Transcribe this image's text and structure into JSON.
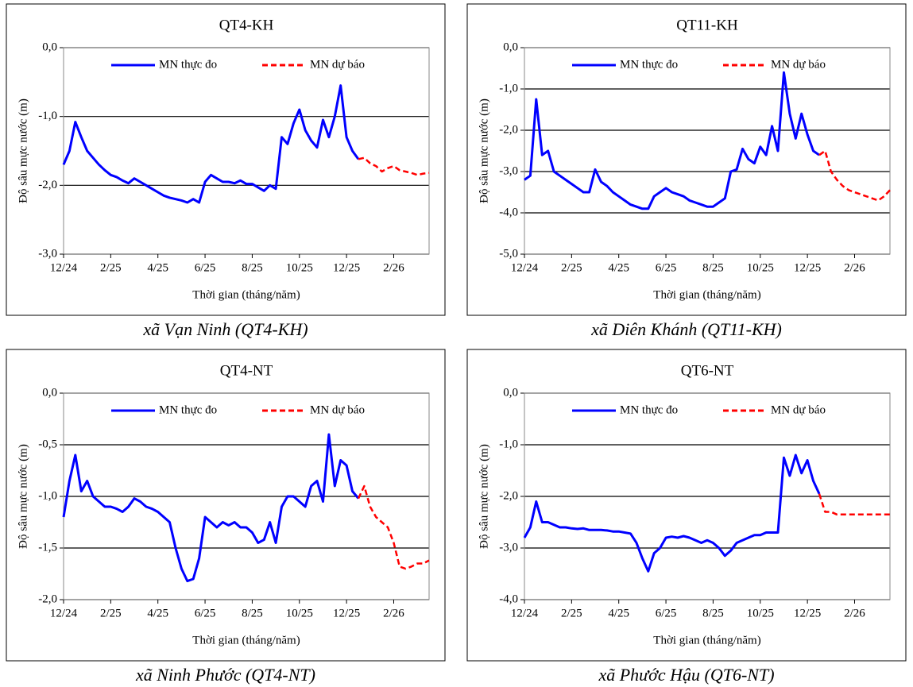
{
  "chart_data": [
    {
      "type": "line",
      "title": "QT4-KH",
      "caption": "xã Vạn Ninh (QT4-KH)",
      "ylabel": "Độ sâu mực nước (m)",
      "xlabel": "Thời gian (tháng/năm)",
      "categories": [
        "12/24",
        null,
        null,
        null,
        null,
        null,
        null,
        null,
        "2/25",
        null,
        null,
        null,
        null,
        null,
        null,
        null,
        "4/25",
        null,
        null,
        null,
        null,
        null,
        null,
        null,
        "6/25",
        null,
        null,
        null,
        null,
        null,
        null,
        null,
        "8/25",
        null,
        null,
        null,
        null,
        null,
        null,
        null,
        "10/25",
        null,
        null,
        null,
        null,
        null,
        null,
        null,
        "12/25",
        null,
        null,
        null,
        null,
        null,
        null,
        null,
        "2/26",
        null,
        null,
        null,
        null,
        null,
        null
      ],
      "ylim": [
        -3,
        0
      ],
      "yticks": [
        {
          "value": -3,
          "label": "-3,0"
        },
        {
          "value": -2,
          "label": "-2,0"
        },
        {
          "value": -1,
          "label": "-1,0"
        },
        {
          "value": 0,
          "label": "0,0"
        }
      ],
      "grid": true,
      "series": [
        {
          "name": "MN thực đo",
          "color": "#0000ff",
          "dash": false,
          "values": [
            -1.7,
            -1.5,
            -1.08,
            -1.3,
            -1.5,
            -1.6,
            -1.7,
            -1.78,
            -1.85,
            -1.88,
            -1.93,
            -1.97,
            -1.9,
            -1.95,
            -2.0,
            -2.05,
            -2.1,
            -2.15,
            -2.18,
            -2.2,
            -2.22,
            -2.25,
            -2.2,
            -2.25,
            -1.95,
            -1.85,
            -1.9,
            -1.95,
            -1.95,
            -1.97,
            -1.93,
            -1.98,
            -1.98,
            -2.03,
            -2.08,
            -2.0,
            -2.05,
            -1.3,
            -1.4,
            -1.1,
            -0.9,
            -1.2,
            -1.35,
            -1.45,
            -1.05,
            -1.3,
            -1.0,
            -0.55,
            -1.3,
            -1.5,
            -1.62,
            null,
            null,
            null,
            null,
            null,
            null,
            null,
            null,
            null,
            null,
            null,
            null
          ]
        },
        {
          "name": "MN dự báo",
          "color": "#ff0000",
          "dash": true,
          "values": [
            null,
            null,
            null,
            null,
            null,
            null,
            null,
            null,
            null,
            null,
            null,
            null,
            null,
            null,
            null,
            null,
            null,
            null,
            null,
            null,
            null,
            null,
            null,
            null,
            null,
            null,
            null,
            null,
            null,
            null,
            null,
            null,
            null,
            null,
            null,
            null,
            null,
            null,
            null,
            null,
            null,
            null,
            null,
            null,
            null,
            null,
            null,
            null,
            null,
            null,
            -1.62,
            -1.6,
            -1.68,
            -1.72,
            -1.8,
            -1.75,
            -1.72,
            -1.78,
            -1.8,
            -1.82,
            -1.85,
            -1.83,
            -1.82
          ]
        }
      ]
    },
    {
      "type": "line",
      "title": "QT11-KH",
      "caption": "xã Diên Khánh (QT11-KH)",
      "ylabel": "Độ sâu mực nước (m)",
      "xlabel": "Thời gian (tháng/năm)",
      "categories": [
        "12/24",
        null,
        null,
        null,
        null,
        null,
        null,
        null,
        "2/25",
        null,
        null,
        null,
        null,
        null,
        null,
        null,
        "4/25",
        null,
        null,
        null,
        null,
        null,
        null,
        null,
        "6/25",
        null,
        null,
        null,
        null,
        null,
        null,
        null,
        "8/25",
        null,
        null,
        null,
        null,
        null,
        null,
        null,
        "10/25",
        null,
        null,
        null,
        null,
        null,
        null,
        null,
        "12/25",
        null,
        null,
        null,
        null,
        null,
        null,
        null,
        "2/26",
        null,
        null,
        null,
        null,
        null,
        null
      ],
      "ylim": [
        -5,
        0
      ],
      "yticks": [
        {
          "value": -5,
          "label": "-5,0"
        },
        {
          "value": -4,
          "label": "-4,0"
        },
        {
          "value": -3,
          "label": "-3,0"
        },
        {
          "value": -2,
          "label": "-2,0"
        },
        {
          "value": -1,
          "label": "-1,0"
        },
        {
          "value": 0,
          "label": "0,0"
        }
      ],
      "grid": true,
      "series": [
        {
          "name": "MN thực đo",
          "color": "#0000ff",
          "dash": false,
          "values": [
            -3.2,
            -3.1,
            -1.25,
            -2.6,
            -2.5,
            -3.0,
            -3.1,
            -3.2,
            -3.3,
            -3.4,
            -3.5,
            -3.5,
            -2.95,
            -3.25,
            -3.35,
            -3.5,
            -3.6,
            -3.7,
            -3.8,
            -3.85,
            -3.9,
            -3.9,
            -3.6,
            -3.5,
            -3.4,
            -3.5,
            -3.55,
            -3.6,
            -3.7,
            -3.75,
            -3.8,
            -3.85,
            -3.85,
            -3.75,
            -3.65,
            -3.0,
            -2.95,
            -2.45,
            -2.7,
            -2.8,
            -2.4,
            -2.6,
            -1.9,
            -2.5,
            -0.6,
            -1.6,
            -2.2,
            -1.6,
            -2.1,
            -2.5,
            -2.6,
            null,
            null,
            null,
            null,
            null,
            null,
            null,
            null,
            null,
            null,
            null,
            null
          ]
        },
        {
          "name": "MN dự báo",
          "color": "#ff0000",
          "dash": true,
          "values": [
            null,
            null,
            null,
            null,
            null,
            null,
            null,
            null,
            null,
            null,
            null,
            null,
            null,
            null,
            null,
            null,
            null,
            null,
            null,
            null,
            null,
            null,
            null,
            null,
            null,
            null,
            null,
            null,
            null,
            null,
            null,
            null,
            null,
            null,
            null,
            null,
            null,
            null,
            null,
            null,
            null,
            null,
            null,
            null,
            null,
            null,
            null,
            null,
            null,
            null,
            -2.6,
            -2.5,
            -3.0,
            -3.2,
            -3.35,
            -3.45,
            -3.5,
            -3.55,
            -3.6,
            -3.65,
            -3.7,
            -3.6,
            -3.45
          ]
        }
      ]
    },
    {
      "type": "line",
      "title": "QT4-NT",
      "caption": "xã Ninh Phước (QT4-NT)",
      "ylabel": "Độ sâu mực nước (m)",
      "xlabel": "Thời gian (tháng/năm)",
      "categories": [
        "12/24",
        null,
        null,
        null,
        null,
        null,
        null,
        null,
        "2/25",
        null,
        null,
        null,
        null,
        null,
        null,
        null,
        "4/25",
        null,
        null,
        null,
        null,
        null,
        null,
        null,
        "6/25",
        null,
        null,
        null,
        null,
        null,
        null,
        null,
        "8/25",
        null,
        null,
        null,
        null,
        null,
        null,
        null,
        "10/25",
        null,
        null,
        null,
        null,
        null,
        null,
        null,
        "12/25",
        null,
        null,
        null,
        null,
        null,
        null,
        null,
        "2/26",
        null,
        null,
        null,
        null,
        null,
        null
      ],
      "ylim": [
        -2,
        0
      ],
      "yticks": [
        {
          "value": -2,
          "label": "-2,0"
        },
        {
          "value": -1.5,
          "label": "-1,5"
        },
        {
          "value": -1,
          "label": "-1,0"
        },
        {
          "value": -0.5,
          "label": "-0,5"
        },
        {
          "value": 0,
          "label": "0,0"
        }
      ],
      "grid": true,
      "series": [
        {
          "name": "MN thực đo",
          "color": "#0000ff",
          "dash": false,
          "values": [
            -1.2,
            -0.85,
            -0.6,
            -0.95,
            -0.85,
            -1.0,
            -1.05,
            -1.1,
            -1.1,
            -1.12,
            -1.15,
            -1.1,
            -1.02,
            -1.05,
            -1.1,
            -1.12,
            -1.15,
            -1.2,
            -1.25,
            -1.5,
            -1.7,
            -1.82,
            -1.8,
            -1.6,
            -1.2,
            -1.25,
            -1.3,
            -1.25,
            -1.28,
            -1.25,
            -1.3,
            -1.3,
            -1.35,
            -1.45,
            -1.42,
            -1.25,
            -1.45,
            -1.1,
            -1.0,
            -1.0,
            -1.05,
            -1.1,
            -0.9,
            -0.85,
            -1.05,
            -0.4,
            -0.9,
            -0.65,
            -0.7,
            -0.95,
            -1.02,
            null,
            null,
            null,
            null,
            null,
            null,
            null,
            null,
            null,
            null,
            null,
            null
          ]
        },
        {
          "name": "MN dự báo",
          "color": "#ff0000",
          "dash": true,
          "values": [
            null,
            null,
            null,
            null,
            null,
            null,
            null,
            null,
            null,
            null,
            null,
            null,
            null,
            null,
            null,
            null,
            null,
            null,
            null,
            null,
            null,
            null,
            null,
            null,
            null,
            null,
            null,
            null,
            null,
            null,
            null,
            null,
            null,
            null,
            null,
            null,
            null,
            null,
            null,
            null,
            null,
            null,
            null,
            null,
            null,
            null,
            null,
            null,
            null,
            null,
            -1.02,
            -0.9,
            -1.1,
            -1.2,
            -1.25,
            -1.3,
            -1.45,
            -1.68,
            -1.7,
            -1.68,
            -1.65,
            -1.65,
            -1.62
          ]
        }
      ]
    },
    {
      "type": "line",
      "title": "QT6-NT",
      "caption": "xã Phước Hậu (QT6-NT)",
      "ylabel": "Độ sâu mực nước (m)",
      "xlabel": "Thời gian (tháng/năm)",
      "categories": [
        "12/24",
        null,
        null,
        null,
        null,
        null,
        null,
        null,
        "2/25",
        null,
        null,
        null,
        null,
        null,
        null,
        null,
        "4/25",
        null,
        null,
        null,
        null,
        null,
        null,
        null,
        "6/25",
        null,
        null,
        null,
        null,
        null,
        null,
        null,
        "8/25",
        null,
        null,
        null,
        null,
        null,
        null,
        null,
        "10/25",
        null,
        null,
        null,
        null,
        null,
        null,
        null,
        "12/25",
        null,
        null,
        null,
        null,
        null,
        null,
        null,
        "2/26",
        null,
        null,
        null,
        null,
        null,
        null
      ],
      "ylim": [
        -4,
        0
      ],
      "yticks": [
        {
          "value": -4,
          "label": "-4,0"
        },
        {
          "value": -3,
          "label": "-3,0"
        },
        {
          "value": -2,
          "label": "-2,0"
        },
        {
          "value": -1,
          "label": "-1,0"
        },
        {
          "value": 0,
          "label": "0,0"
        }
      ],
      "grid": true,
      "series": [
        {
          "name": "MN thực đo",
          "color": "#0000ff",
          "dash": false,
          "values": [
            -2.8,
            -2.6,
            -2.1,
            -2.5,
            -2.5,
            -2.55,
            -2.6,
            -2.6,
            -2.62,
            -2.63,
            -2.62,
            -2.65,
            -2.65,
            -2.65,
            -2.66,
            -2.68,
            -2.68,
            -2.7,
            -2.72,
            -2.9,
            -3.2,
            -3.45,
            -3.1,
            -3.0,
            -2.8,
            -2.78,
            -2.8,
            -2.77,
            -2.8,
            -2.85,
            -2.9,
            -2.85,
            -2.9,
            -3.0,
            -3.15,
            -3.05,
            -2.9,
            -2.85,
            -2.8,
            -2.75,
            -2.75,
            -2.7,
            -2.7,
            -2.7,
            -1.25,
            -1.6,
            -1.2,
            -1.55,
            -1.3,
            -1.7,
            -1.95,
            null,
            null,
            null,
            null,
            null,
            null,
            null,
            null,
            null,
            null,
            null,
            null
          ]
        },
        {
          "name": "MN dự báo",
          "color": "#ff0000",
          "dash": true,
          "values": [
            null,
            null,
            null,
            null,
            null,
            null,
            null,
            null,
            null,
            null,
            null,
            null,
            null,
            null,
            null,
            null,
            null,
            null,
            null,
            null,
            null,
            null,
            null,
            null,
            null,
            null,
            null,
            null,
            null,
            null,
            null,
            null,
            null,
            null,
            null,
            null,
            null,
            null,
            null,
            null,
            null,
            null,
            null,
            null,
            null,
            null,
            null,
            null,
            null,
            null,
            -1.95,
            -2.3,
            -2.3,
            -2.35,
            -2.35,
            -2.35,
            -2.35,
            -2.35,
            -2.35,
            -2.35,
            -2.35,
            -2.35,
            -2.35
          ]
        }
      ]
    }
  ]
}
